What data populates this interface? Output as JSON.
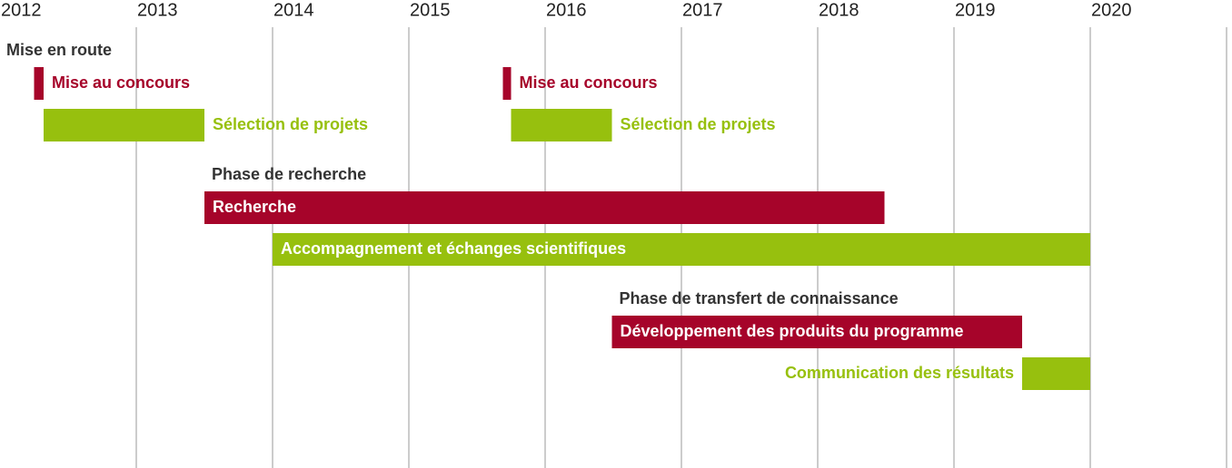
{
  "chart_data": {
    "type": "gantt",
    "xlim": [
      2012,
      2021
    ],
    "xticks": [
      2012,
      2013,
      2014,
      2015,
      2016,
      2017,
      2018,
      2019,
      2020
    ],
    "grid": true,
    "groups": [
      {
        "title": "Mise en route",
        "rows": [
          [
            {
              "name": "Mise au concours",
              "start": 2012.25,
              "end": 2012.32,
              "color": "#a6042a",
              "label_position": "right"
            },
            {
              "name": "Mise au concours",
              "start": 2015.69,
              "end": 2015.75,
              "color": "#a6042a",
              "label_position": "right"
            }
          ],
          [
            {
              "name": "Sélection de projets",
              "start": 2012.32,
              "end": 2013.5,
              "color": "#97c00e",
              "label_position": "right"
            },
            {
              "name": "Sélection de projets",
              "start": 2015.75,
              "end": 2016.49,
              "color": "#97c00e",
              "label_position": "right"
            }
          ]
        ]
      },
      {
        "title": "Phase de recherche",
        "rows": [
          [
            {
              "name": "Recherche",
              "start": 2013.5,
              "end": 2018.49,
              "color": "#a6042a",
              "label_position": "inside"
            }
          ],
          [
            {
              "name": "Accompagnement et échanges scientifiques",
              "start": 2014,
              "end": 2020,
              "color": "#97c00e",
              "label_position": "inside"
            }
          ]
        ]
      },
      {
        "title": "Phase de transfert de connaissance",
        "rows": [
          [
            {
              "name": "Développement des produits du programme",
              "start": 2016.49,
              "end": 2019.5,
              "color": "#a6042a",
              "label_position": "inside"
            }
          ],
          [
            {
              "name": "Communication des résultats",
              "start": 2019.5,
              "end": 2020,
              "color": "#97c00e",
              "label_position": "left"
            }
          ]
        ]
      }
    ]
  }
}
